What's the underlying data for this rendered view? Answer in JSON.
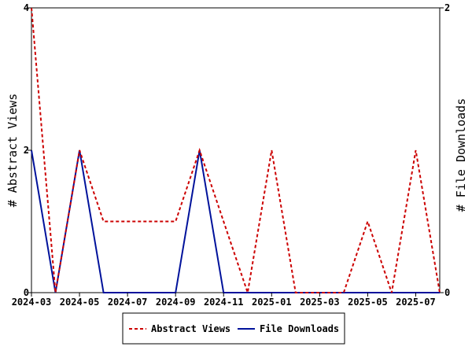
{
  "chart_data": {
    "type": "line",
    "x": [
      "2024-03",
      "2024-04",
      "2024-05",
      "2024-06",
      "2024-07",
      "2024-08",
      "2024-09",
      "2024-10",
      "2024-11",
      "2024-12",
      "2025-01",
      "2025-02",
      "2025-03",
      "2025-04",
      "2025-05",
      "2025-06",
      "2025-07",
      "2025-08"
    ],
    "x_tick_labels": [
      "2024-03",
      "2024-05",
      "2024-07",
      "2024-09",
      "2024-11",
      "2025-01",
      "2025-03",
      "2025-05",
      "2025-07"
    ],
    "series": [
      {
        "name": "Abstract Views",
        "axis": "left",
        "color": "#cc0000",
        "style": "dashed",
        "values": [
          4,
          0,
          2,
          1,
          1,
          1,
          1,
          2,
          1,
          0,
          2,
          0,
          0,
          0,
          1,
          0,
          2,
          0
        ]
      },
      {
        "name": "File Downloads",
        "axis": "right",
        "color": "#00129b",
        "style": "solid",
        "values": [
          1,
          0,
          1,
          0,
          0,
          0,
          0,
          1,
          0,
          0,
          0,
          0,
          0,
          0,
          0,
          0,
          0,
          0
        ]
      }
    ],
    "ylabel_left": "# Abstract Views",
    "ylabel_right": "# File Downloads",
    "ylim_left": [
      0,
      4
    ],
    "ylim_right": [
      0,
      2
    ],
    "y_ticks_left": [
      "0",
      "2",
      "4"
    ],
    "y_ticks_right": [
      "0",
      "2"
    ],
    "grid": false,
    "legend_position": "bottom"
  }
}
